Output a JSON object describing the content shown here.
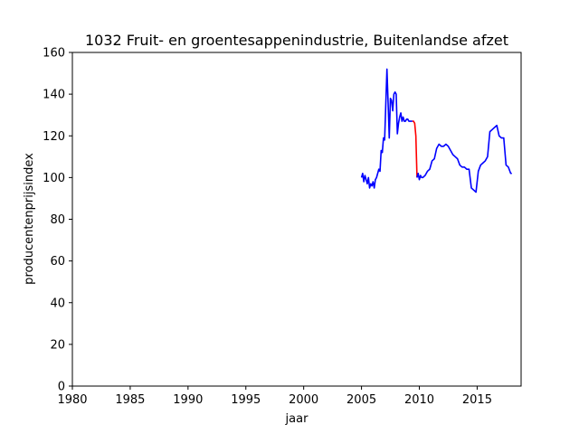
{
  "chart_data": {
    "type": "line",
    "title": "1032 Fruit- en groentesappenindustrie, Buitenlandse afzet",
    "xlabel": "jaar",
    "ylabel": "producentenprijsindex",
    "xlim": [
      1980,
      2018.8
    ],
    "ylim": [
      0,
      160
    ],
    "xticks": [
      "1980",
      "1985",
      "1990",
      "1995",
      "2000",
      "2005",
      "2010",
      "2015"
    ],
    "yticks": [
      "0",
      "20",
      "40",
      "60",
      "80",
      "100",
      "120",
      "140",
      "160"
    ],
    "grid": false,
    "legend": "none",
    "colors": {
      "series_blue": "#0000ff",
      "series_red": "#ff0000"
    },
    "series": [
      {
        "color": "series_blue",
        "x": [
          2005.0,
          2005.1,
          2005.2,
          2005.3,
          2005.4,
          2005.5,
          2005.6,
          2005.7,
          2005.8,
          2005.9,
          2006.0,
          2006.1,
          2006.2,
          2006.3,
          2006.4,
          2006.5,
          2006.6,
          2006.7,
          2006.8,
          2006.9,
          2007.0,
          2007.1,
          2007.2,
          2007.3,
          2007.4,
          2007.5,
          2007.6,
          2007.7,
          2007.8,
          2007.9,
          2008.0,
          2008.1,
          2008.2,
          2008.3,
          2008.4,
          2008.5,
          2008.6,
          2008.7,
          2008.8,
          2008.9,
          2009.0,
          2009.1,
          2009.2,
          2009.3,
          2009.4
        ],
        "y": [
          100,
          102,
          98,
          101,
          99,
          97,
          100,
          95,
          97,
          96,
          98,
          95,
          99,
          100,
          102,
          104,
          103,
          113,
          112,
          119,
          118,
          135,
          152,
          136,
          119,
          138,
          137,
          132,
          140,
          141,
          140,
          121,
          126,
          129,
          131,
          127,
          129,
          127,
          127,
          128,
          128,
          127,
          127,
          127,
          127
        ]
      },
      {
        "color": "series_red",
        "x": [
          2009.4,
          2009.5,
          2009.6,
          2009.7,
          2009.8
        ],
        "y": [
          127,
          127,
          126,
          120,
          100
        ]
      },
      {
        "color": "series_blue",
        "x": [
          2009.8,
          2009.9,
          2010.0,
          2010.1,
          2010.2,
          2010.3,
          2010.5,
          2010.7,
          2010.9,
          2011.1,
          2011.3,
          2011.5,
          2011.7,
          2011.9,
          2012.1,
          2012.3,
          2012.5,
          2012.7,
          2012.9,
          2013.1,
          2013.3,
          2013.5,
          2013.7,
          2013.9,
          2014.1,
          2014.3,
          2014.5,
          2014.7,
          2014.9,
          2015.1,
          2015.3,
          2015.5,
          2015.7,
          2015.9,
          2016.1,
          2016.3,
          2016.5,
          2016.7,
          2016.9,
          2017.1,
          2017.3,
          2017.5,
          2017.7,
          2017.9,
          2018.0
        ],
        "y": [
          100,
          102,
          99,
          101,
          100,
          100,
          101,
          103,
          104,
          108,
          109,
          114,
          116,
          115,
          115,
          116,
          115,
          113,
          111,
          110,
          109,
          106,
          105,
          105,
          104,
          104,
          95,
          94,
          93,
          103,
          106,
          107,
          108,
          110,
          122,
          123,
          124,
          125,
          120,
          119,
          119,
          106,
          105,
          102,
          102
        ]
      }
    ]
  }
}
